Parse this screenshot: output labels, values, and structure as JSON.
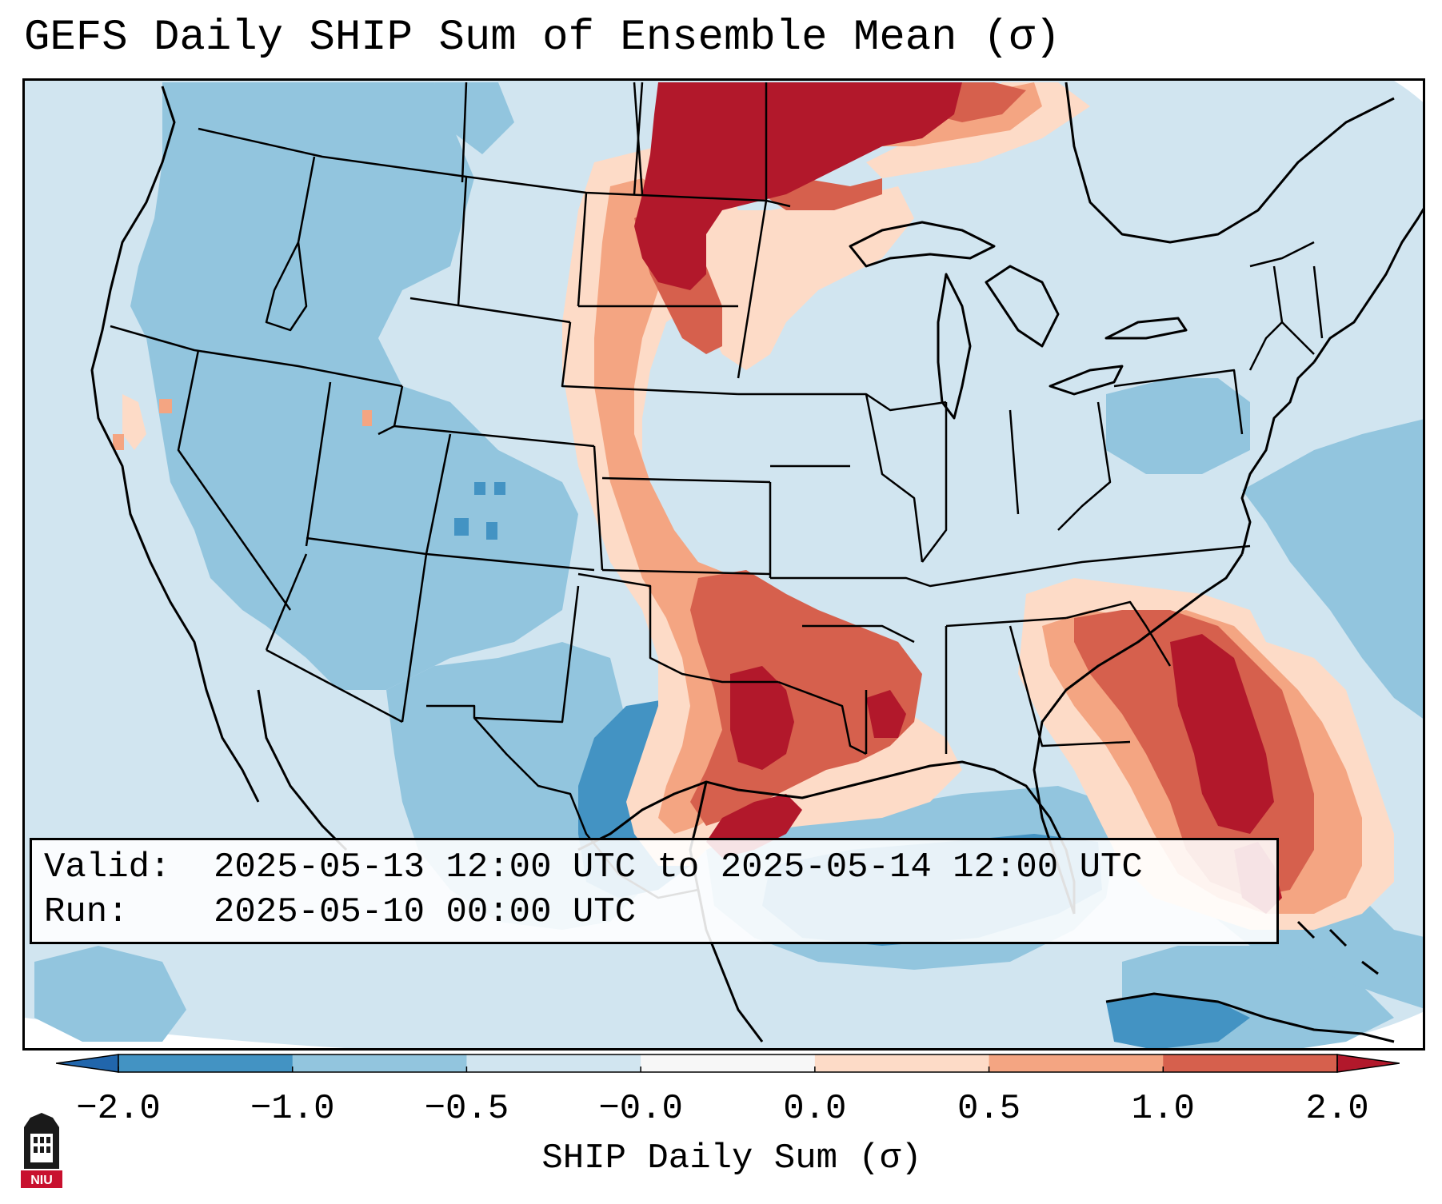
{
  "title": "GEFS Daily SHIP Sum of Ensemble Mean (σ)",
  "info": {
    "valid_key": "Valid:",
    "valid_value": "2025-05-13 12:00 UTC to 2025-05-14 12:00 UTC",
    "run_key": "Run:",
    "run_value": "2025-05-10 00:00 UTC"
  },
  "colorbar": {
    "label": "SHIP Daily Sum (σ)",
    "ticks": [
      "−2.0",
      "−1.0",
      "−0.5",
      "−0.0",
      "0.0",
      "0.5",
      "1.0",
      "2.0"
    ],
    "colors": [
      "#4393c3",
      "#92c5de",
      "#d1e5f0",
      "#f7f7f7",
      "#fddbc7",
      "#f4a582",
      "#d6604d",
      "#b2182b"
    ],
    "under_color": "#2166ac",
    "over_color": "#b2182b"
  },
  "logo_text": "NIU"
}
